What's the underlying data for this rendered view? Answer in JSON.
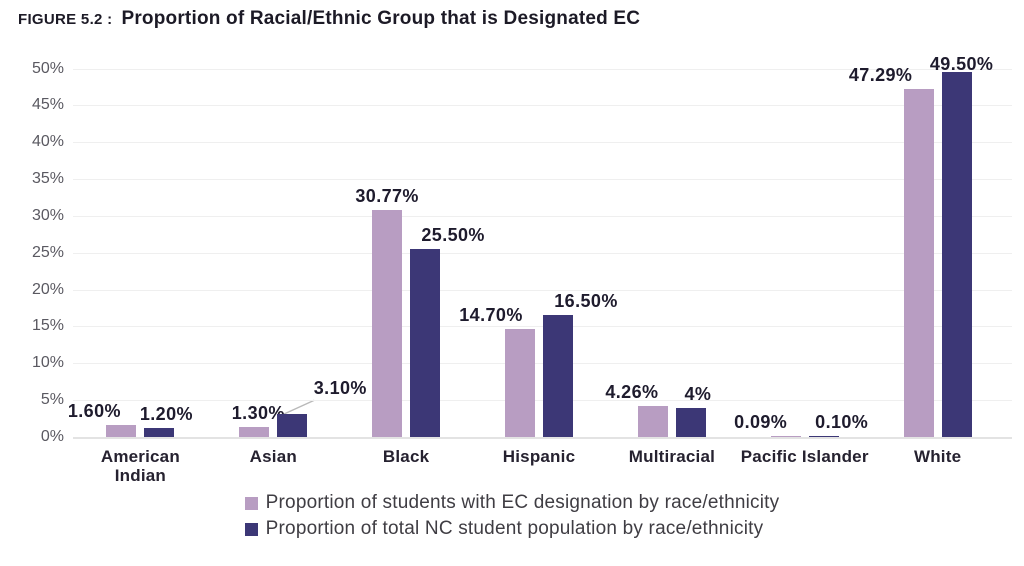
{
  "header": {
    "figure_label": "FIGURE 5.2 :",
    "title": "Proportion of Racial/Ethnic Group that is Designated EC"
  },
  "chart_data": {
    "type": "bar",
    "title": "FIGURE 5.2 : Proportion of Racial/Ethnic Group that is Designated EC",
    "categories": [
      "American\nIndian",
      "Asian",
      "Black",
      "Hispanic",
      "Multiracial",
      "Pacific Islander",
      "White"
    ],
    "series": [
      {
        "name": "Proportion of students with EC designation by race/ethnicity",
        "color": "#b89dc2",
        "values": [
          1.6,
          1.3,
          30.77,
          14.7,
          4.26,
          0.09,
          47.29
        ],
        "labels": [
          "1.60%",
          "1.30%",
          "30.77%",
          "14.70%",
          "4.26%",
          "0.09%",
          "47.29%"
        ],
        "label_dx": [
          -27,
          4,
          0,
          -29,
          -21,
          -25,
          -38
        ],
        "label_dy": [
          0,
          0,
          0,
          0,
          0,
          0,
          0
        ],
        "callout_index": -1
      },
      {
        "name": "Proportion of total NC student population by race/ethnicity",
        "color": "#3c3776",
        "values": [
          1.2,
          3.1,
          25.5,
          16.5,
          4.0,
          0.1,
          49.5
        ],
        "labels": [
          "1.20%",
          "3.10%",
          "25.50%",
          "16.50%",
          "4%",
          "0.10%",
          "49.50%"
        ],
        "label_dx": [
          7,
          48,
          28,
          28,
          7,
          18,
          5
        ],
        "label_dy": [
          0,
          -12,
          0,
          0,
          0,
          0,
          6
        ],
        "callout_index": 1
      }
    ],
    "y_axis": {
      "min": 0,
      "max": 50,
      "step": 5,
      "ticks": [
        "0%",
        "5%",
        "10%",
        "15%",
        "20%",
        "25%",
        "30%",
        "35%",
        "40%",
        "45%",
        "50%"
      ]
    },
    "grid": true,
    "legend_position": "bottom",
    "colors": {
      "grid": "#efefef",
      "baseline": "#e3e3e3",
      "axis_text": "#5a5961",
      "value_text": "#1e1b2d",
      "category_text": "#262230",
      "legend_text": "#3f3d43",
      "callout_line": "#b9b9b9"
    }
  }
}
